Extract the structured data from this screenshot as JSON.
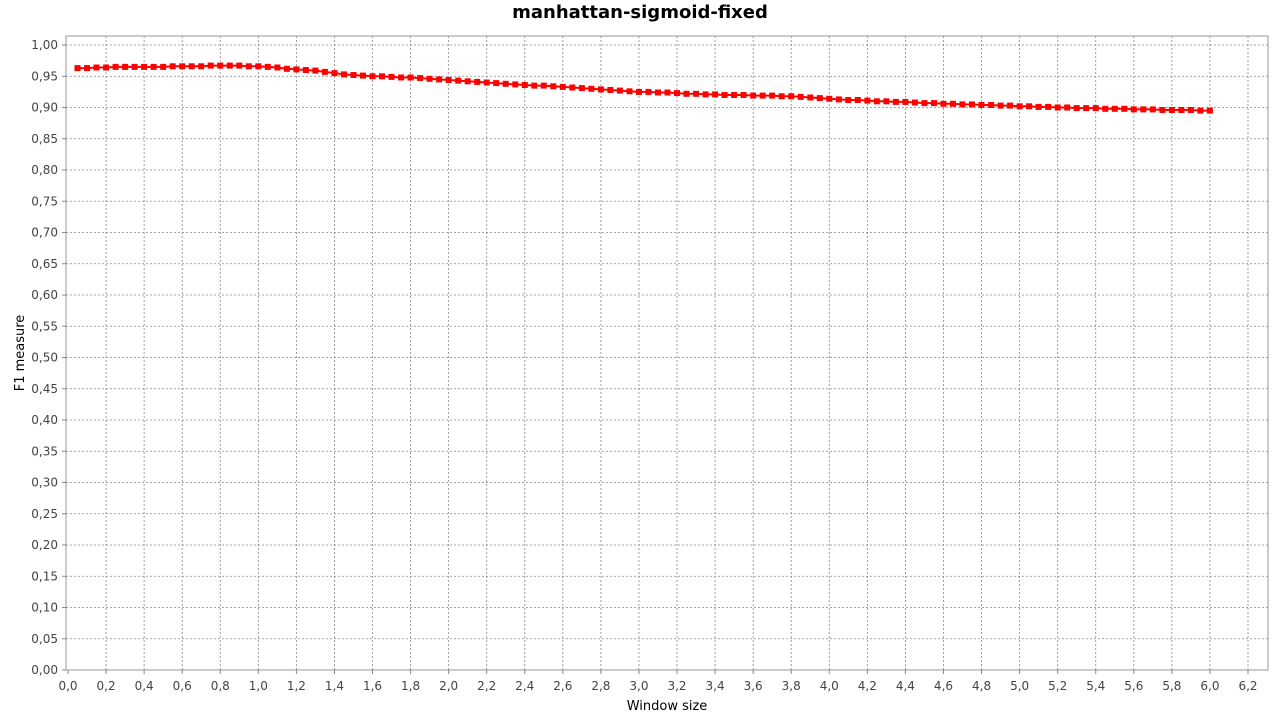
{
  "chart_data": {
    "type": "line",
    "title": "manhattan-sigmoid-fixed",
    "xlabel": "Window size",
    "ylabel": "F1 measure",
    "xlim": [
      0.0,
      6.3
    ],
    "ylim": [
      0.0,
      1.0
    ],
    "grid": true,
    "legend": "none",
    "x_ticks": [
      "0,0",
      "0,2",
      "0,4",
      "0,6",
      "0,8",
      "1,0",
      "1,2",
      "1,4",
      "1,6",
      "1,8",
      "2,0",
      "2,2",
      "2,4",
      "2,6",
      "2,8",
      "3,0",
      "3,2",
      "3,4",
      "3,6",
      "3,8",
      "4,0",
      "4,2",
      "4,4",
      "4,6",
      "4,8",
      "5,0",
      "5,2",
      "5,4",
      "5,6",
      "5,8",
      "6,0",
      "6,2"
    ],
    "y_ticks": [
      "0,00",
      "0,05",
      "0,10",
      "0,15",
      "0,20",
      "0,25",
      "0,30",
      "0,35",
      "0,40",
      "0,45",
      "0,50",
      "0,55",
      "0,60",
      "0,65",
      "0,70",
      "0,75",
      "0,80",
      "0,85",
      "0,90",
      "0,95",
      "1,00"
    ],
    "series": [
      {
        "color": "#ff0000",
        "x": [
          0.05,
          0.1,
          0.15,
          0.2,
          0.25,
          0.3,
          0.35,
          0.4,
          0.45,
          0.5,
          0.55,
          0.6,
          0.65,
          0.7,
          0.75,
          0.8,
          0.85,
          0.9,
          0.95,
          1.0,
          1.05,
          1.1,
          1.15,
          1.2,
          1.25,
          1.3,
          1.35,
          1.4,
          1.45,
          1.5,
          1.55,
          1.6,
          1.65,
          1.7,
          1.75,
          1.8,
          1.85,
          1.9,
          1.95,
          2.0,
          2.05,
          2.1,
          2.15,
          2.2,
          2.25,
          2.3,
          2.35,
          2.4,
          2.45,
          2.5,
          2.55,
          2.6,
          2.65,
          2.7,
          2.75,
          2.8,
          2.85,
          2.9,
          2.95,
          3.0,
          3.05,
          3.1,
          3.15,
          3.2,
          3.25,
          3.3,
          3.35,
          3.4,
          3.45,
          3.5,
          3.55,
          3.6,
          3.65,
          3.7,
          3.75,
          3.8,
          3.85,
          3.9,
          3.95,
          4.0,
          4.05,
          4.1,
          4.15,
          4.2,
          4.25,
          4.3,
          4.35,
          4.4,
          4.45,
          4.5,
          4.55,
          4.6,
          4.65,
          4.7,
          4.75,
          4.8,
          4.85,
          4.9,
          4.95,
          5.0,
          5.05,
          5.1,
          5.15,
          5.2,
          5.25,
          5.3,
          5.35,
          5.4,
          5.45,
          5.5,
          5.55,
          5.6,
          5.65,
          5.7,
          5.75,
          5.8,
          5.85,
          5.9,
          5.95,
          6.0
        ],
        "y": [
          0.963,
          0.963,
          0.964,
          0.964,
          0.965,
          0.965,
          0.965,
          0.965,
          0.965,
          0.965,
          0.966,
          0.966,
          0.966,
          0.966,
          0.967,
          0.967,
          0.967,
          0.967,
          0.966,
          0.966,
          0.965,
          0.964,
          0.962,
          0.961,
          0.96,
          0.959,
          0.957,
          0.955,
          0.953,
          0.952,
          0.951,
          0.95,
          0.95,
          0.949,
          0.948,
          0.948,
          0.947,
          0.946,
          0.945,
          0.944,
          0.943,
          0.942,
          0.941,
          0.94,
          0.939,
          0.938,
          0.937,
          0.936,
          0.935,
          0.935,
          0.934,
          0.933,
          0.932,
          0.931,
          0.93,
          0.929,
          0.928,
          0.927,
          0.926,
          0.925,
          0.925,
          0.924,
          0.924,
          0.923,
          0.922,
          0.922,
          0.921,
          0.921,
          0.92,
          0.92,
          0.92,
          0.919,
          0.919,
          0.919,
          0.918,
          0.918,
          0.917,
          0.916,
          0.915,
          0.914,
          0.913,
          0.912,
          0.912,
          0.911,
          0.91,
          0.91,
          0.909,
          0.909,
          0.908,
          0.907,
          0.907,
          0.906,
          0.906,
          0.905,
          0.905,
          0.904,
          0.904,
          0.903,
          0.903,
          0.902,
          0.902,
          0.901,
          0.901,
          0.9,
          0.9,
          0.899,
          0.899,
          0.899,
          0.898,
          0.898,
          0.898,
          0.897,
          0.897,
          0.897,
          0.896,
          0.896,
          0.896,
          0.896,
          0.895,
          0.895
        ]
      }
    ]
  }
}
